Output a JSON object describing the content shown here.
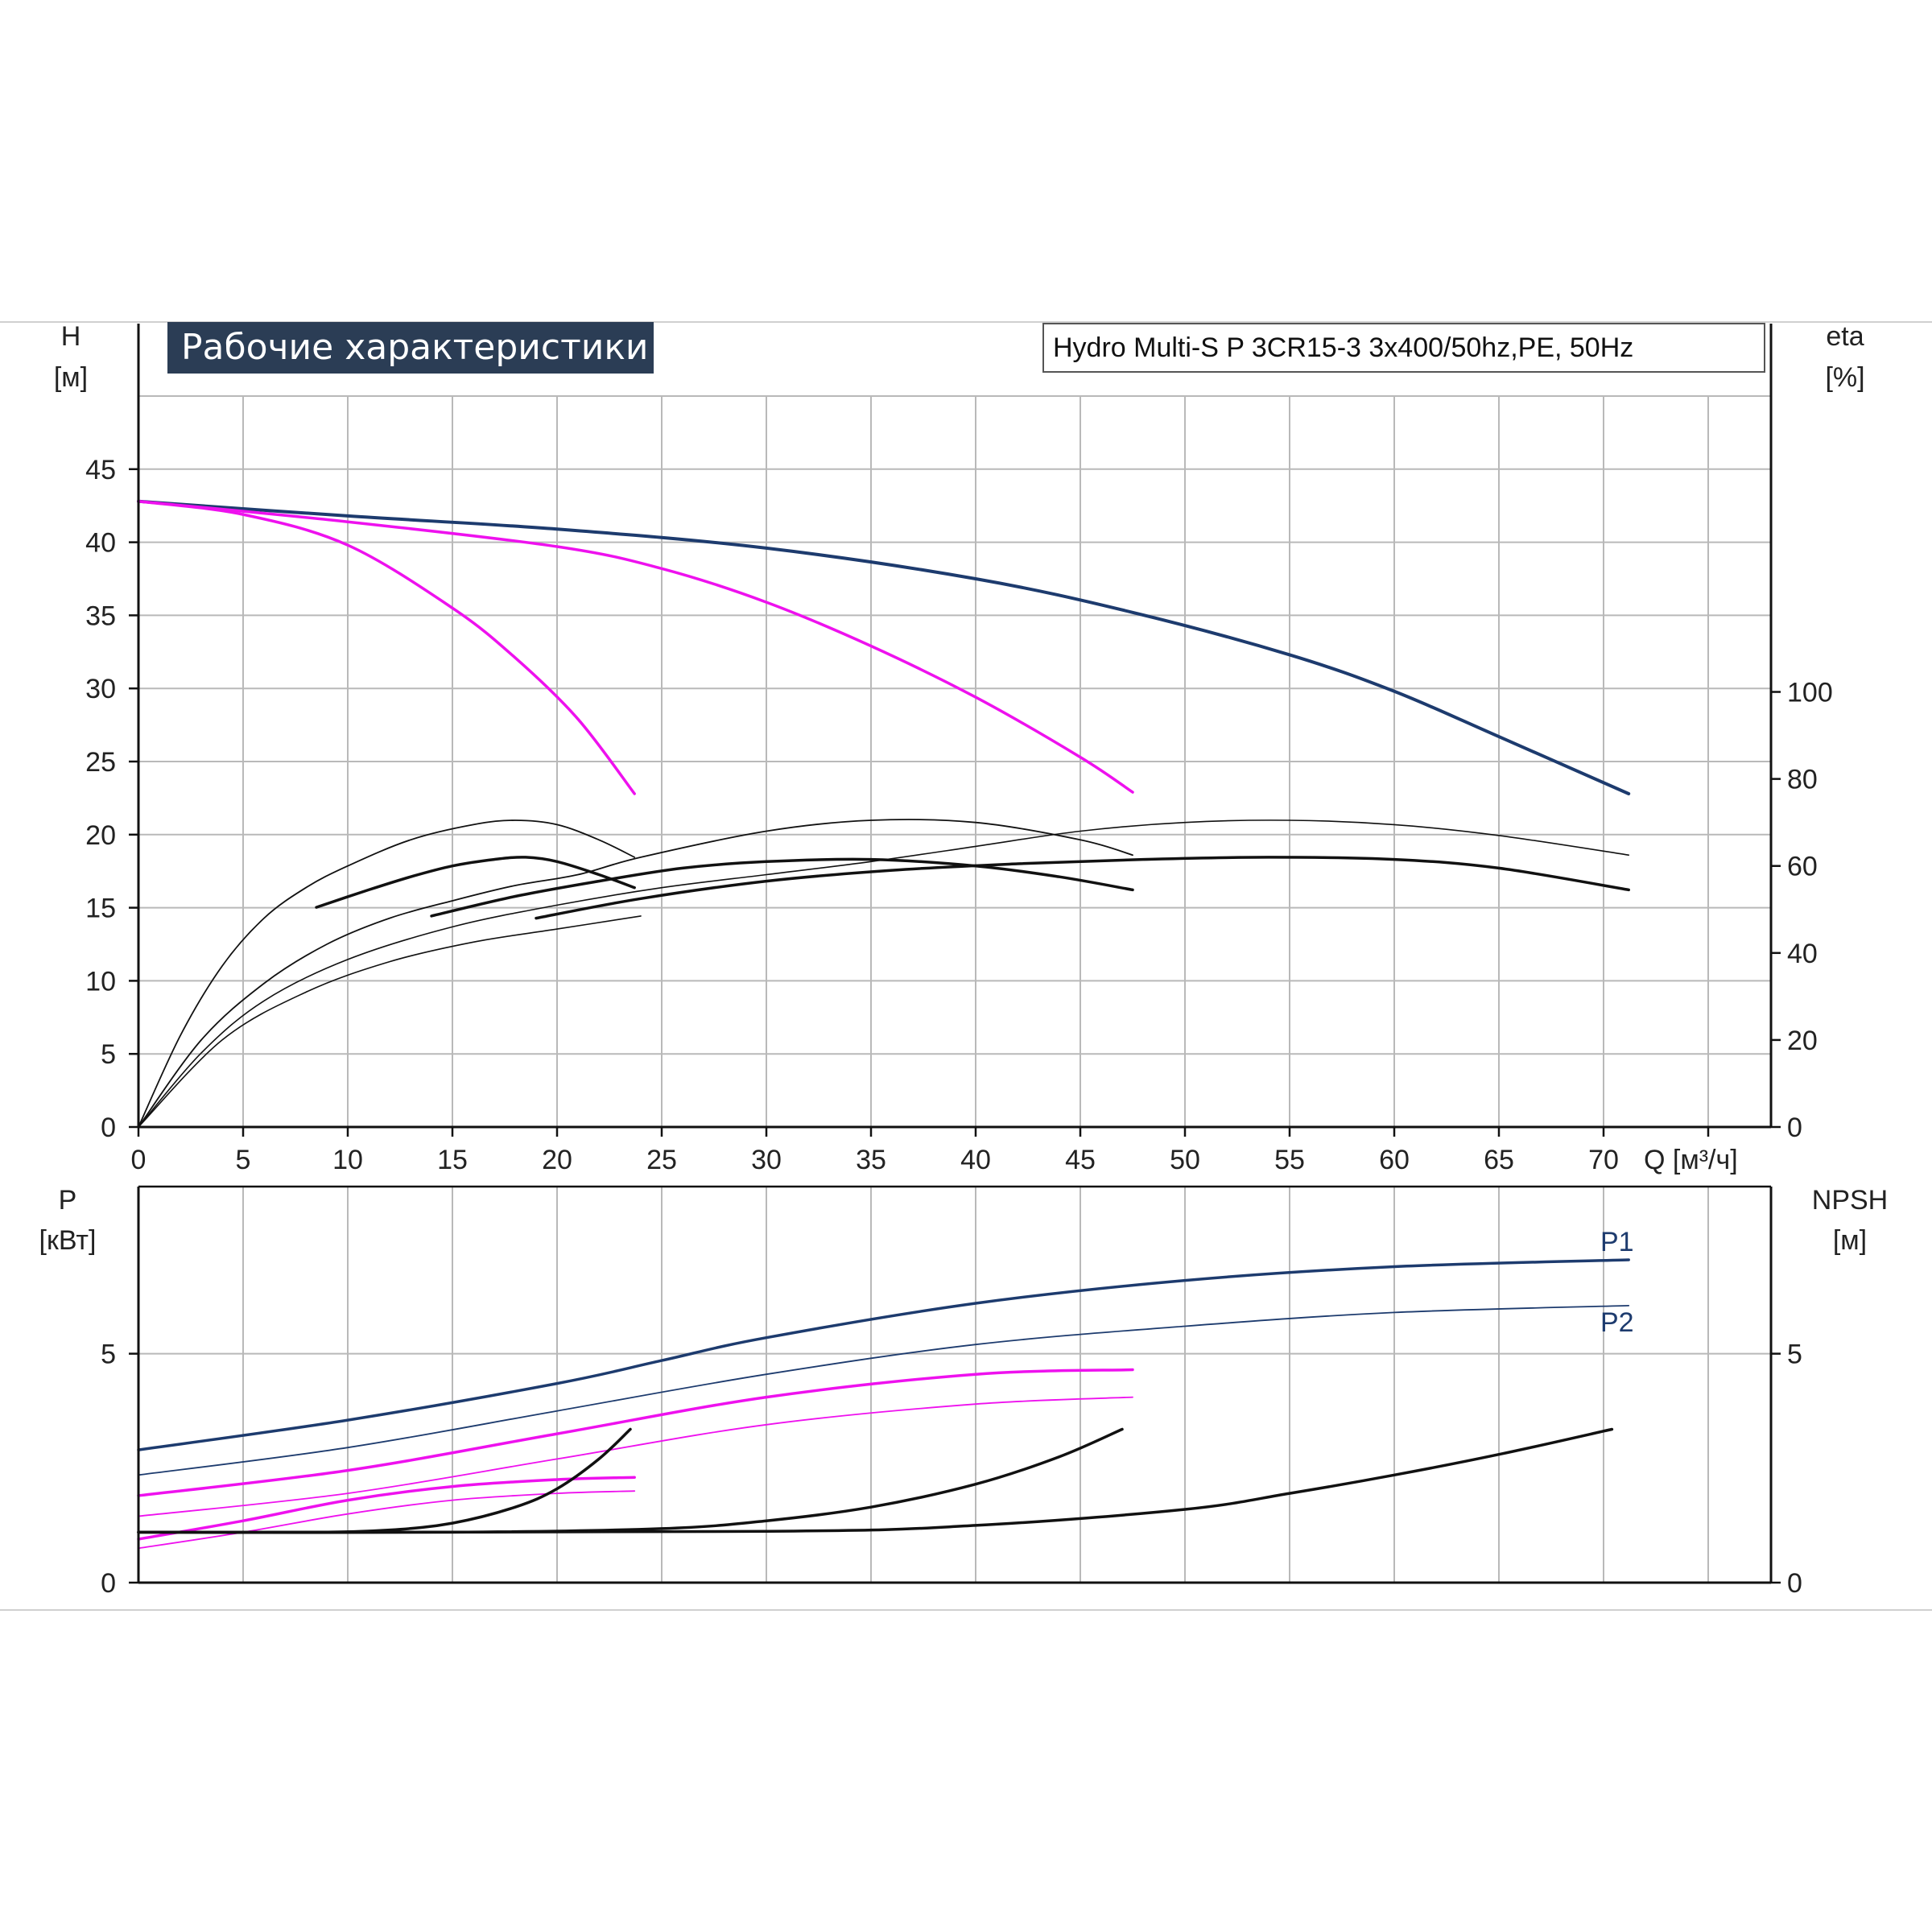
{
  "title": "Рабочие характеристики",
  "subtitle": "Hydro Multi-S P 3CR15-3 3x400/50hz,PE, 50Hz",
  "colors": {
    "navy": "#1d3b6e",
    "magenta": "#ee11ee",
    "black": "#111111",
    "banner": "#2b3d55",
    "grid": "#b9b9b9"
  },
  "chart_data": [
    {
      "type": "line",
      "panel": "top",
      "xlabel": "Q [м³/ч]",
      "ylabel": [
        "H",
        "[м]"
      ],
      "y2label": [
        "eta",
        "[%]"
      ],
      "xlim": [
        0,
        78
      ],
      "ylim": [
        0,
        50
      ],
      "y2lim": [
        0,
        168
      ],
      "x_ticks": [
        0,
        5,
        10,
        15,
        20,
        25,
        30,
        35,
        40,
        45,
        50,
        55,
        60,
        65,
        70
      ],
      "y_ticks": [
        0,
        5,
        10,
        15,
        20,
        25,
        30,
        35,
        40,
        45
      ],
      "y2_ticks": [
        0,
        20,
        40,
        60,
        80,
        100
      ],
      "grid": true,
      "series": [
        {
          "axis": "y",
          "color": "navy",
          "width": 4,
          "points": [
            [
              0,
              42.8
            ],
            [
              10,
              41.8
            ],
            [
              20,
              40.9
            ],
            [
              30,
              39.6
            ],
            [
              40,
              37.5
            ],
            [
              47.5,
              35.2
            ],
            [
              55,
              32.3
            ],
            [
              60,
              29.8
            ],
            [
              65,
              26.7
            ],
            [
              71.2,
              22.8
            ]
          ]
        },
        {
          "axis": "y",
          "color": "magenta",
          "width": 3.5,
          "points": [
            [
              0,
              42.8
            ],
            [
              10,
              41.4
            ],
            [
              20,
              39.7
            ],
            [
              25,
              38.2
            ],
            [
              30,
              35.9
            ],
            [
              35,
              32.9
            ],
            [
              40,
              29.4
            ],
            [
              45,
              25.3
            ],
            [
              47.5,
              22.9
            ]
          ]
        },
        {
          "axis": "y",
          "color": "magenta",
          "width": 3.5,
          "points": [
            [
              0,
              42.8
            ],
            [
              5,
              41.9
            ],
            [
              10,
              39.8
            ],
            [
              15,
              35.5
            ],
            [
              18,
              32.1
            ],
            [
              21,
              27.9
            ],
            [
              23.7,
              22.8
            ]
          ]
        },
        {
          "axis": "y2",
          "color": "black",
          "width": 1.8,
          "points": [
            [
              0,
              0
            ],
            [
              2,
              21
            ],
            [
              4,
              37
            ],
            [
              6,
              48
            ],
            [
              8,
              55
            ],
            [
              10,
              60
            ],
            [
              13,
              66
            ],
            [
              16,
              69.5
            ],
            [
              18,
              70.5
            ],
            [
              20,
              69.5
            ],
            [
              22,
              66
            ],
            [
              23.7,
              62
            ]
          ]
        },
        {
          "axis": "y2",
          "color": "black",
          "width": 3.5,
          "points": [
            [
              8.5,
              50.5
            ],
            [
              11,
              54.5
            ],
            [
              13,
              57.5
            ],
            [
              15,
              60
            ],
            [
              17,
              61.5
            ],
            [
              18.5,
              62
            ],
            [
              20,
              61
            ],
            [
              22,
              58
            ],
            [
              23.7,
              55
            ]
          ]
        },
        {
          "axis": "y2",
          "color": "black",
          "width": 1.8,
          "points": [
            [
              0,
              0
            ],
            [
              3,
              20
            ],
            [
              6,
              33
            ],
            [
              9,
              42
            ],
            [
              12,
              48
            ],
            [
              15,
              52
            ],
            [
              18,
              55.5
            ],
            [
              21,
              58
            ],
            [
              24,
              62
            ],
            [
              30,
              68
            ],
            [
              35,
              70.5
            ],
            [
              40,
              70
            ],
            [
              45,
              66
            ],
            [
              47.5,
              62.5
            ]
          ]
        },
        {
          "axis": "y2",
          "color": "black",
          "width": 3.5,
          "points": [
            [
              14,
              48.5
            ],
            [
              18,
              53
            ],
            [
              22,
              56.5
            ],
            [
              26,
              59.5
            ],
            [
              30,
              61
            ],
            [
              35,
              61.5
            ],
            [
              40,
              60
            ],
            [
              44,
              57.5
            ],
            [
              47.5,
              54.5
            ]
          ]
        },
        {
          "axis": "y2",
          "color": "black",
          "width": 1.6,
          "points": [
            [
              0,
              0
            ],
            [
              3,
              17
            ],
            [
              6,
              29
            ],
            [
              10,
              38.5
            ],
            [
              15,
              46
            ],
            [
              20,
              51
            ],
            [
              25,
              55
            ],
            [
              30,
              58
            ],
            [
              35,
              61
            ],
            [
              40,
              64.5
            ],
            [
              45,
              68
            ],
            [
              50,
              70
            ],
            [
              55,
              70.5
            ],
            [
              60,
              69.5
            ],
            [
              65,
              67
            ],
            [
              71.2,
              62.5
            ]
          ]
        },
        {
          "axis": "y2",
          "color": "black",
          "width": 3.5,
          "points": [
            [
              19,
              48
            ],
            [
              24,
              52.5
            ],
            [
              30,
              56.5
            ],
            [
              36,
              59
            ],
            [
              42,
              60.5
            ],
            [
              48,
              61.5
            ],
            [
              54,
              62
            ],
            [
              60,
              61.5
            ],
            [
              65,
              59.5
            ],
            [
              71.2,
              54.5
            ]
          ]
        },
        {
          "axis": "y2",
          "color": "black",
          "width": 1.6,
          "points": [
            [
              0,
              0
            ],
            [
              4,
              20
            ],
            [
              8,
              31
            ],
            [
              12,
              38
            ],
            [
              16,
              42.5
            ],
            [
              20,
              45.5
            ],
            [
              24,
              48.5
            ]
          ]
        }
      ]
    },
    {
      "type": "line",
      "panel": "bottom",
      "ylabel": [
        "P",
        "[кВт]"
      ],
      "y2label": [
        "NPSH",
        "[м]"
      ],
      "xlim": [
        0,
        78
      ],
      "ylim": [
        0,
        8.65
      ],
      "y_ticks": [
        0,
        5
      ],
      "y2_ticks": [
        0,
        5
      ],
      "grid": true,
      "series": [
        {
          "name": "P1",
          "color": "navy",
          "width": 3.5,
          "points": [
            [
              0,
              2.9
            ],
            [
              10,
              3.55
            ],
            [
              20,
              4.35
            ],
            [
              25,
              4.85
            ],
            [
              30,
              5.35
            ],
            [
              40,
              6.1
            ],
            [
              50,
              6.6
            ],
            [
              60,
              6.9
            ],
            [
              71.2,
              7.05
            ]
          ]
        },
        {
          "name": "P2",
          "color": "navy",
          "width": 1.8,
          "points": [
            [
              0,
              2.35
            ],
            [
              10,
              2.95
            ],
            [
              20,
              3.75
            ],
            [
              30,
              4.55
            ],
            [
              40,
              5.2
            ],
            [
              50,
              5.6
            ],
            [
              60,
              5.9
            ],
            [
              71.2,
              6.05
            ]
          ]
        },
        {
          "color": "magenta",
          "width": 3.5,
          "points": [
            [
              0,
              1.9
            ],
            [
              10,
              2.45
            ],
            [
              20,
              3.25
            ],
            [
              30,
              4.05
            ],
            [
              40,
              4.55
            ],
            [
              47.5,
              4.65
            ]
          ]
        },
        {
          "color": "magenta",
          "width": 1.8,
          "points": [
            [
              0,
              1.45
            ],
            [
              10,
              1.95
            ],
            [
              20,
              2.7
            ],
            [
              30,
              3.45
            ],
            [
              40,
              3.9
            ],
            [
              47.5,
              4.05
            ]
          ]
        },
        {
          "color": "magenta",
          "width": 3.5,
          "points": [
            [
              0,
              0.95
            ],
            [
              5,
              1.35
            ],
            [
              10,
              1.8
            ],
            [
              15,
              2.1
            ],
            [
              20,
              2.25
            ],
            [
              23.7,
              2.3
            ]
          ]
        },
        {
          "color": "magenta",
          "width": 1.8,
          "points": [
            [
              0,
              0.75
            ],
            [
              5,
              1.1
            ],
            [
              10,
              1.5
            ],
            [
              15,
              1.8
            ],
            [
              20,
              1.95
            ],
            [
              23.7,
              2.0
            ]
          ]
        },
        {
          "color": "black",
          "width": 3.5,
          "points": [
            [
              0,
              1.1
            ],
            [
              8,
              1.1
            ],
            [
              12,
              1.15
            ],
            [
              15,
              1.3
            ],
            [
              18,
              1.65
            ],
            [
              20,
              2.05
            ],
            [
              22,
              2.7
            ],
            [
              23.5,
              3.35
            ]
          ]
        },
        {
          "color": "black",
          "width": 3.5,
          "points": [
            [
              0,
              1.1
            ],
            [
              15,
              1.1
            ],
            [
              25,
              1.18
            ],
            [
              30,
              1.35
            ],
            [
              35,
              1.65
            ],
            [
              40,
              2.15
            ],
            [
              44,
              2.75
            ],
            [
              47,
              3.35
            ]
          ]
        },
        {
          "color": "black",
          "width": 3.5,
          "points": [
            [
              0,
              1.1
            ],
            [
              30,
              1.12
            ],
            [
              40,
              1.25
            ],
            [
              50,
              1.6
            ],
            [
              55,
              1.95
            ],
            [
              60,
              2.35
            ],
            [
              65,
              2.8
            ],
            [
              70.4,
              3.35
            ]
          ]
        }
      ]
    }
  ]
}
